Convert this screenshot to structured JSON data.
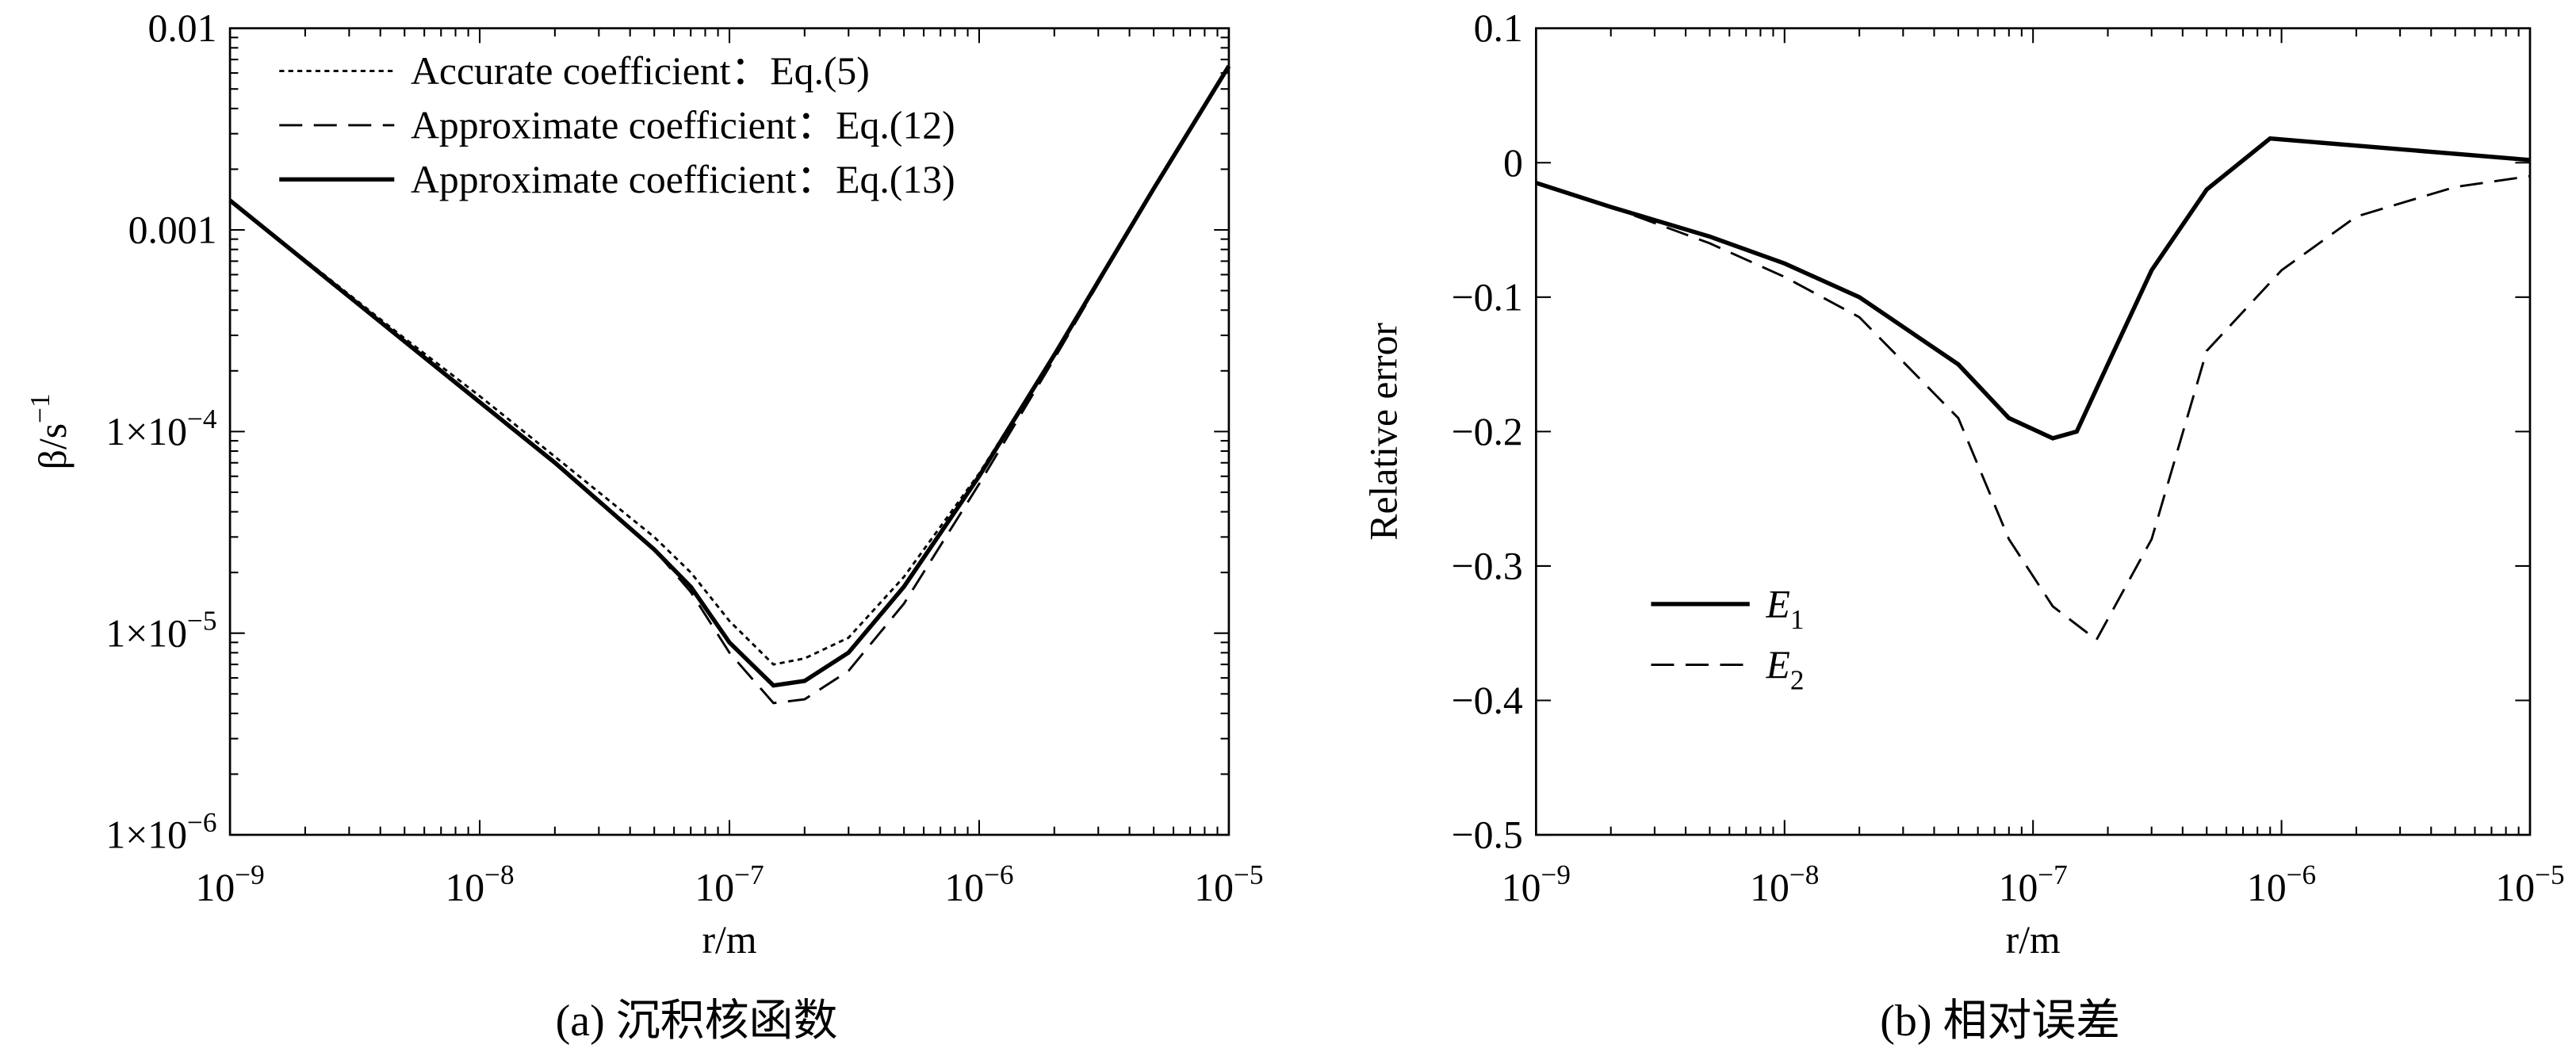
{
  "chart_data": [
    {
      "type": "line",
      "caption": "(a) 沉积核函数",
      "xlabel": "r/m",
      "ylabel": "β/s−1",
      "xscale": "log",
      "yscale": "log",
      "legend": "upper left",
      "xlim": [
        1e-09,
        1e-05
      ],
      "ylim": [
        1e-06,
        0.01
      ],
      "xticks": [
        {
          "value": 1e-09,
          "label": "10−9"
        },
        {
          "value": 1e-08,
          "label": "10−8"
        },
        {
          "value": 1e-07,
          "label": "10−7"
        },
        {
          "value": 1e-06,
          "label": "10−6"
        },
        {
          "value": 1e-05,
          "label": "10−5"
        }
      ],
      "yticks": [
        {
          "value": 1e-06,
          "label": "1×10−6"
        },
        {
          "value": 1e-05,
          "label": "1×10−5"
        },
        {
          "value": 0.0001,
          "label": "1×10−4"
        },
        0.001,
        0.01
      ],
      "x": [
        1e-09,
        2e-09,
        5e-09,
        1e-08,
        2e-08,
        5e-08,
        7e-08,
        1e-07,
        1.5e-07,
        2e-07,
        3e-07,
        5e-07,
        1e-06,
        2e-06,
        5e-06,
        1e-05
      ],
      "series": [
        {
          "name": "Accurate coefficient：Eq.(5)",
          "color": "#000000",
          "style": "dotted",
          "values": [
            0.0014,
            0.00071,
            0.00029,
            0.00015,
            7.5e-05,
            3e-05,
            2e-05,
            1.15e-05,
            7e-06,
            7.5e-06,
            9.5e-06,
            1.9e-05,
            6.2e-05,
            0.00024,
            0.0016,
            0.0065
          ]
        },
        {
          "name": "Approximate coefficient：Eq.(12)",
          "color": "#000000",
          "style": "dashed",
          "values": [
            0.0014,
            0.0007,
            0.00028,
            0.00014,
            7e-05,
            2.6e-05,
            1.6e-05,
            8e-06,
            4.5e-06,
            4.7e-06,
            6.5e-06,
            1.4e-05,
            5.5e-05,
            0.00023,
            0.0016,
            0.0065
          ]
        },
        {
          "name": "Approximate coefficient：Eq.(13)",
          "color": "#000000",
          "style": "solid",
          "values": [
            0.0014,
            0.0007,
            0.00028,
            0.00014,
            7e-05,
            2.6e-05,
            1.7e-05,
            9e-06,
            5.5e-06,
            5.8e-06,
            8e-06,
            1.7e-05,
            6e-05,
            0.00024,
            0.0016,
            0.0065
          ]
        }
      ]
    },
    {
      "type": "line",
      "caption": "(b) 相对误差",
      "xlabel": "r/m",
      "ylabel": "Relative error",
      "xscale": "log",
      "yscale": "linear",
      "legend": "center left",
      "xlim": [
        1e-09,
        1e-05
      ],
      "ylim": [
        -0.5,
        0.1
      ],
      "xticks": [
        {
          "value": 1e-09,
          "label": "10−9"
        },
        {
          "value": 1e-08,
          "label": "10−8"
        },
        {
          "value": 1e-07,
          "label": "10−7"
        },
        {
          "value": 1e-06,
          "label": "10−6"
        },
        {
          "value": 1e-05,
          "label": "10−5"
        }
      ],
      "yticks": [
        {
          "value": -0.5,
          "label": "−0.5"
        },
        {
          "value": -0.4,
          "label": "−0.4"
        },
        {
          "value": -0.3,
          "label": "−0.3"
        },
        {
          "value": -0.2,
          "label": "−0.2"
        },
        {
          "value": -0.1,
          "label": "−0.1"
        },
        0,
        0.1
      ],
      "series": [
        {
          "name": "E1",
          "color": "#000000",
          "style": "solid",
          "x": [
            1e-09,
            2e-09,
            5e-09,
            1e-08,
            2e-08,
            5e-08,
            8e-08,
            1.2e-07,
            1.5e-07,
            2e-07,
            3e-07,
            5e-07,
            9e-07,
            1e-05
          ],
          "values": [
            -0.015,
            -0.033,
            -0.055,
            -0.075,
            -0.1,
            -0.15,
            -0.19,
            -0.205,
            -0.2,
            -0.15,
            -0.08,
            -0.02,
            0.018,
            0.002
          ]
        },
        {
          "name": "E2",
          "color": "#000000",
          "style": "dashed",
          "x": [
            1e-09,
            2e-09,
            5e-09,
            1e-08,
            2e-08,
            5e-08,
            8e-08,
            1.2e-07,
            1.8e-07,
            3e-07,
            5e-07,
            1e-06,
            2e-06,
            5e-06,
            1e-05
          ],
          "values": [
            -0.015,
            -0.033,
            -0.06,
            -0.085,
            -0.115,
            -0.19,
            -0.28,
            -0.33,
            -0.355,
            -0.28,
            -0.14,
            -0.08,
            -0.04,
            -0.018,
            -0.01
          ]
        }
      ]
    }
  ]
}
